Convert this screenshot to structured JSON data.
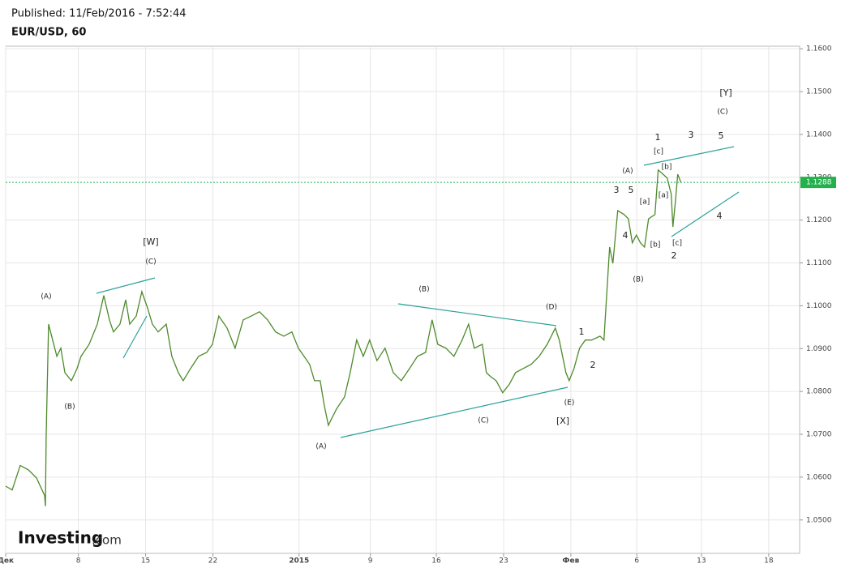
{
  "chart_data": {
    "type": "line",
    "title": "EUR/USD, 60",
    "subtitle": "Published: 11/Feb/2016 - 7:52:44",
    "watermark": [
      "Investing",
      ".com"
    ],
    "xlim": [
      0,
      59
    ],
    "ylim": [
      1.0422,
      1.1606
    ],
    "grid": true,
    "xticks": [
      {
        "value": 0,
        "label": "Дек"
      },
      {
        "value": 5.4,
        "label": "8"
      },
      {
        "value": 10.4,
        "label": "15"
      },
      {
        "value": 15.4,
        "label": "22"
      },
      {
        "value": 21.8,
        "label": "2015"
      },
      {
        "value": 27.1,
        "label": "9"
      },
      {
        "value": 32.0,
        "label": "16"
      },
      {
        "value": 37.0,
        "label": "23"
      },
      {
        "value": 42.0,
        "label": "Фев"
      },
      {
        "value": 46.9,
        "label": "6"
      },
      {
        "value": 51.7,
        "label": "13"
      },
      {
        "value": 56.7,
        "label": "18"
      }
    ],
    "yticks": [
      {
        "value": 1.05,
        "label": "1.0500"
      },
      {
        "value": 1.06,
        "label": "1.0600"
      },
      {
        "value": 1.07,
        "label": "1.0700"
      },
      {
        "value": 1.08,
        "label": "1.0800"
      },
      {
        "value": 1.09,
        "label": "1.0900"
      },
      {
        "value": 1.1,
        "label": "1.1000"
      },
      {
        "value": 1.11,
        "label": "1.1100"
      },
      {
        "value": 1.12,
        "label": "1.1200"
      },
      {
        "value": 1.13,
        "label": "1.1300"
      },
      {
        "value": 1.14,
        "label": "1.1400"
      },
      {
        "value": 1.15,
        "label": "1.1500"
      },
      {
        "value": 1.16,
        "label": "1.1600"
      }
    ],
    "last_price": 1.1288,
    "last_price_color": "#22b14c",
    "x": [
      0,
      0.48,
      1.08,
      1.69,
      2.29,
      2.89,
      2.95,
      3.01,
      3.19,
      3.49,
      3.8,
      4.1,
      4.4,
      4.88,
      5.3,
      5.6,
      6.2,
      6.81,
      7.29,
      7.71,
      8.01,
      8.49,
      8.92,
      9.22,
      9.7,
      10.12,
      10.54,
      10.9,
      11.33,
      11.93,
      12.35,
      12.83,
      13.19,
      13.73,
      14.34,
      14.94,
      15.36,
      15.84,
      16.45,
      17.05,
      17.65,
      18.25,
      18.86,
      19.46,
      20.06,
      20.66,
      21.27,
      21.75,
      22.17,
      22.59,
      22.95,
      23.37,
      23.67,
      23.98,
      24.58,
      25.18,
      25.6,
      26.08,
      26.57,
      27.05,
      27.59,
      28.19,
      28.8,
      29.4,
      30.0,
      30.6,
      31.2,
      31.69,
      32.11,
      32.71,
      33.31,
      33.92,
      34.4,
      34.82,
      35.42,
      35.72,
      36.02,
      36.45,
      36.93,
      37.41,
      37.89,
      38.43,
      39.04,
      39.64,
      40.24,
      40.84,
      41.14,
      41.63,
      41.87,
      42.23,
      42.65,
      43.07,
      43.55,
      44.16,
      44.46,
      44.64,
      44.88,
      45.12,
      45.48,
      45.96,
      46.27,
      46.57,
      46.87,
      47.17,
      47.47,
      47.77,
      48.25,
      48.49,
      48.86,
      49.16,
      49.46,
      49.58,
      49.76,
      49.94,
      50.18
    ],
    "series": [
      {
        "name": "EUR/USD",
        "color": "#4d8a2a",
        "values": [
          1.0579,
          1.057,
          1.0627,
          1.0617,
          1.0598,
          1.0557,
          1.0532,
          1.0693,
          1.0957,
          1.092,
          1.0882,
          1.0901,
          1.0844,
          1.0825,
          1.0853,
          1.0882,
          1.091,
          1.0957,
          1.1024,
          1.0967,
          1.0939,
          1.0957,
          1.1014,
          1.0957,
          1.0976,
          1.1033,
          1.0995,
          1.0957,
          1.0939,
          1.0957,
          1.0882,
          1.0844,
          1.0825,
          1.0853,
          1.0882,
          1.0891,
          1.091,
          1.0976,
          1.0948,
          1.0901,
          1.0967,
          1.0976,
          1.0986,
          1.0967,
          1.0939,
          1.0929,
          1.0939,
          1.0901,
          1.0882,
          1.0863,
          1.0825,
          1.0825,
          1.0768,
          1.0721,
          1.0759,
          1.0787,
          1.0844,
          1.092,
          1.0882,
          1.092,
          1.0872,
          1.0901,
          1.0844,
          1.0825,
          1.0853,
          1.0882,
          1.0891,
          1.0967,
          1.091,
          1.0901,
          1.0882,
          1.092,
          1.0957,
          1.0901,
          1.091,
          1.0844,
          1.0835,
          1.0825,
          1.0797,
          1.0816,
          1.0844,
          1.0853,
          1.0863,
          1.0882,
          1.091,
          1.0948,
          1.092,
          1.0844,
          1.0825,
          1.0853,
          1.0901,
          1.092,
          1.092,
          1.0929,
          1.092,
          1.1014,
          1.1137,
          1.1099,
          1.1222,
          1.1213,
          1.1203,
          1.1147,
          1.1165,
          1.1147,
          1.1137,
          1.1203,
          1.1213,
          1.1317,
          1.1307,
          1.1298,
          1.126,
          1.1184,
          1.1241,
          1.1307,
          1.1288
        ]
      }
    ],
    "annotations": [
      "[W]",
      "(C)",
      "(A)",
      "(B)",
      "(A)",
      "(B)",
      "(C)",
      "(D)",
      "(E)",
      "[X]",
      "1",
      "2",
      "3",
      "5",
      "4",
      "(A)",
      "(B)",
      "[a]",
      "[b]",
      "[c]",
      "[b]",
      "[a]",
      "[c]",
      "1",
      "2",
      "3",
      "5",
      "4",
      "(C)",
      "[Y]"
    ]
  }
}
